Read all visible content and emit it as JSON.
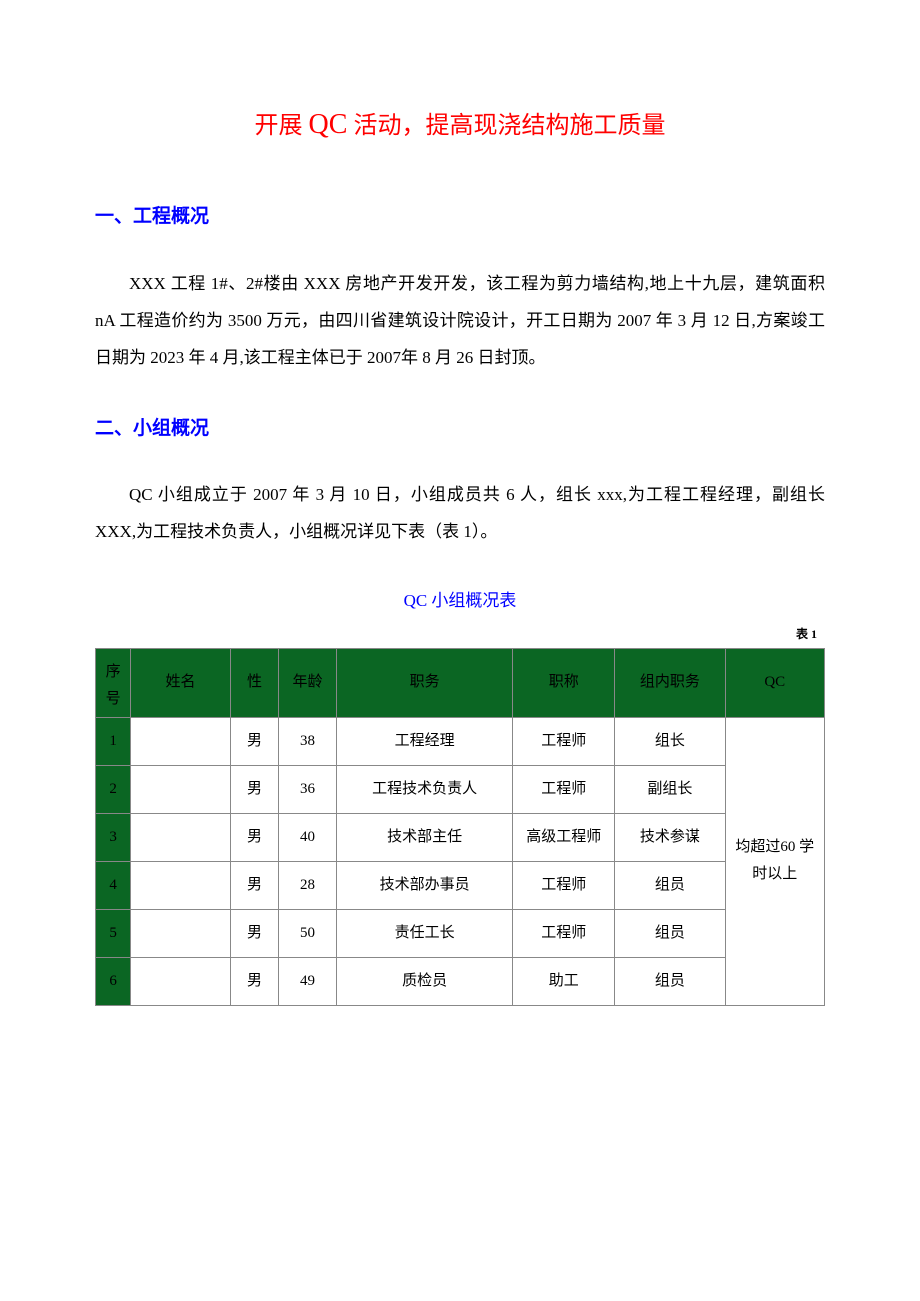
{
  "title": {
    "prefix": "开展 ",
    "qc": "QC",
    "suffix": " 活动，提高现浇结构施工质量"
  },
  "section1": {
    "header": "一、工程概况",
    "paragraph": "XXX 工程 1#、2#楼由 XXX 房地产开发开发，该工程为剪力墙结构,地上十九层，建筑面积 nA 工程造价约为 3500 万元，由四川省建筑设计院设计，开工日期为 2007 年 3 月 12 日,方案竣工日期为 2023 年 4 月,该工程主体已于 2007年 8 月 26 日封顶。"
  },
  "section2": {
    "header": "二、小组概况",
    "paragraph": "QC 小组成立于 2007 年 3 月 10 日，小组成员共 6 人，组长 xxx,为工程工程经理，副组长 XXX,为工程技术负责人，小组概况详见下表（表 1）。"
  },
  "table": {
    "title": "QC 小组概况表",
    "label": "表 1",
    "headers": {
      "seq": "序号",
      "name": "姓名",
      "gender": "性",
      "age": "年龄",
      "duty": "职务",
      "title": "职称",
      "role": "组内职务",
      "qc": "QC"
    },
    "rows": [
      {
        "seq": "1",
        "name": "",
        "gender": "男",
        "age": "38",
        "duty": "工程经理",
        "title": "工程师",
        "role": "组长"
      },
      {
        "seq": "2",
        "name": "",
        "gender": "男",
        "age": "36",
        "duty": "工程技术负责人",
        "title": "工程师",
        "role": "副组长"
      },
      {
        "seq": "3",
        "name": "",
        "gender": "男",
        "age": "40",
        "duty": "技术部主任",
        "title": "高级工程师",
        "role": "技术参谋"
      },
      {
        "seq": "4",
        "name": "",
        "gender": "男",
        "age": "28",
        "duty": "技术部办事员",
        "title": "工程师",
        "role": "组员"
      },
      {
        "seq": "5",
        "name": "",
        "gender": "男",
        "age": "50",
        "duty": "责任工长",
        "title": "工程师",
        "role": "组员"
      },
      {
        "seq": "6",
        "name": "",
        "gender": "男",
        "age": "49",
        "duty": "质检员",
        "title": "助工",
        "role": "组员"
      }
    ],
    "qc_merged": "均超过60 学时以上",
    "colors": {
      "header_bg": "#0b6623",
      "border": "#888888",
      "title_red": "#ff0000",
      "header_blue": "#0000ff"
    }
  }
}
